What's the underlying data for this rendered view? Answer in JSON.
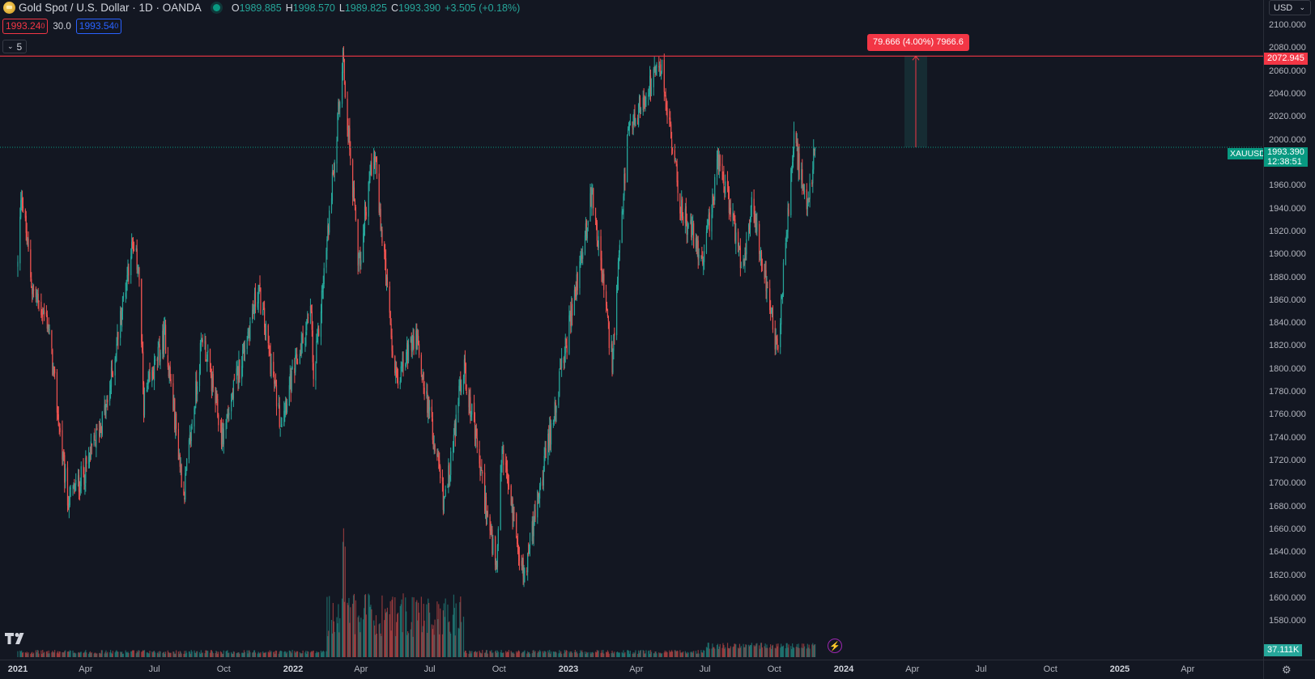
{
  "header": {
    "title": "Gold Spot / U.S. Dollar · 1D · OANDA",
    "ohlc": {
      "o_label": "O",
      "o": "1989.885",
      "h_label": "H",
      "h": "1998.570",
      "l_label": "L",
      "l": "1989.825",
      "c_label": "C",
      "c": "1993.390",
      "change": "+3.505 (+0.18%)"
    }
  },
  "quote": {
    "sell_main": "1993.24",
    "sell_sup": "0",
    "spread": "30.0",
    "buy_main": "1993.54",
    "buy_sup": "0"
  },
  "indicators_toggle": {
    "count": "5"
  },
  "currency": {
    "value": "USD"
  },
  "price_axis": {
    "ticks": [
      "2100.000",
      "2080.000",
      "2060.000",
      "2040.000",
      "2020.000",
      "2000.000",
      "1980.000",
      "1960.000",
      "1940.000",
      "1920.000",
      "1900.000",
      "1880.000",
      "1860.000",
      "1840.000",
      "1820.000",
      "1800.000",
      "1780.000",
      "1760.000",
      "1740.000",
      "1720.000",
      "1700.000",
      "1680.000",
      "1660.000",
      "1640.000",
      "1620.000",
      "1600.000",
      "1580.000"
    ],
    "resistance_label": "2072.945",
    "last_price": "1993.390",
    "countdown": "12:38:51",
    "volume_label": "37.111K"
  },
  "symbol_tag": "XAUUSD",
  "measure": {
    "label": "79.666 (4.00%) 7966.6"
  },
  "time_axis": [
    {
      "label": "2021",
      "bold": true
    },
    {
      "label": "Apr",
      "bold": false
    },
    {
      "label": "Jul",
      "bold": false
    },
    {
      "label": "Oct",
      "bold": false
    },
    {
      "label": "2022",
      "bold": true
    },
    {
      "label": "Apr",
      "bold": false
    },
    {
      "label": "Jul",
      "bold": false
    },
    {
      "label": "Oct",
      "bold": false
    },
    {
      "label": "2023",
      "bold": true
    },
    {
      "label": "Apr",
      "bold": false
    },
    {
      "label": "Jul",
      "bold": false
    },
    {
      "label": "Oct",
      "bold": false
    },
    {
      "label": "2024",
      "bold": true
    },
    {
      "label": "Apr",
      "bold": false
    },
    {
      "label": "Jul",
      "bold": false
    },
    {
      "label": "Oct",
      "bold": false
    },
    {
      "label": "2025",
      "bold": true
    },
    {
      "label": "Apr",
      "bold": false
    }
  ],
  "colors": {
    "up": "#26a69a",
    "down": "#ef5350",
    "bg": "#131722",
    "resistance": "#f23645",
    "last": "#089981"
  },
  "chart_data": {
    "type": "candlestick",
    "symbol": "XAUUSD",
    "timeframe": "1D",
    "ylim": [
      1575,
      2110
    ],
    "resistance": 2072.945,
    "last": 1993.39,
    "x_range": [
      "2021-01",
      "2025-05"
    ],
    "anchors": [
      {
        "date": "2021-01-01",
        "price": 1890
      },
      {
        "date": "2021-01-06",
        "price": 1955
      },
      {
        "date": "2021-01-20",
        "price": 1870
      },
      {
        "date": "2021-02-10",
        "price": 1840
      },
      {
        "date": "2021-03-01",
        "price": 1725
      },
      {
        "date": "2021-03-08",
        "price": 1685
      },
      {
        "date": "2021-03-31",
        "price": 1710
      },
      {
        "date": "2021-04-30",
        "price": 1770
      },
      {
        "date": "2021-05-31",
        "price": 1905
      },
      {
        "date": "2021-06-10",
        "price": 1890
      },
      {
        "date": "2021-06-17",
        "price": 1770
      },
      {
        "date": "2021-07-15",
        "price": 1830
      },
      {
        "date": "2021-08-09",
        "price": 1690
      },
      {
        "date": "2021-09-03",
        "price": 1830
      },
      {
        "date": "2021-09-29",
        "price": 1740
      },
      {
        "date": "2021-11-16",
        "price": 1870
      },
      {
        "date": "2021-12-15",
        "price": 1755
      },
      {
        "date": "2022-01-25",
        "price": 1850
      },
      {
        "date": "2022-01-28",
        "price": 1785
      },
      {
        "date": "2022-02-24",
        "price": 1975
      },
      {
        "date": "2022-03-08",
        "price": 2070
      },
      {
        "date": "2022-03-29",
        "price": 1890
      },
      {
        "date": "2022-04-18",
        "price": 1995
      },
      {
        "date": "2022-05-16",
        "price": 1790
      },
      {
        "date": "2022-06-13",
        "price": 1830
      },
      {
        "date": "2022-07-21",
        "price": 1680
      },
      {
        "date": "2022-08-15",
        "price": 1805
      },
      {
        "date": "2022-09-28",
        "price": 1620
      },
      {
        "date": "2022-10-05",
        "price": 1730
      },
      {
        "date": "2022-11-03",
        "price": 1618
      },
      {
        "date": "2022-12-30",
        "price": 1825
      },
      {
        "date": "2023-02-02",
        "price": 1955
      },
      {
        "date": "2023-02-28",
        "price": 1805
      },
      {
        "date": "2023-03-20",
        "price": 2000
      },
      {
        "date": "2023-04-13",
        "price": 2040
      },
      {
        "date": "2023-05-04",
        "price": 2065
      },
      {
        "date": "2023-05-30",
        "price": 1940
      },
      {
        "date": "2023-06-29",
        "price": 1895
      },
      {
        "date": "2023-07-20",
        "price": 1985
      },
      {
        "date": "2023-08-21",
        "price": 1885
      },
      {
        "date": "2023-09-01",
        "price": 1950
      },
      {
        "date": "2023-10-05",
        "price": 1815
      },
      {
        "date": "2023-10-27",
        "price": 2005
      },
      {
        "date": "2023-11-13",
        "price": 1935
      },
      {
        "date": "2023-11-24",
        "price": 1993.39
      }
    ],
    "volume_last": "37.111K"
  }
}
